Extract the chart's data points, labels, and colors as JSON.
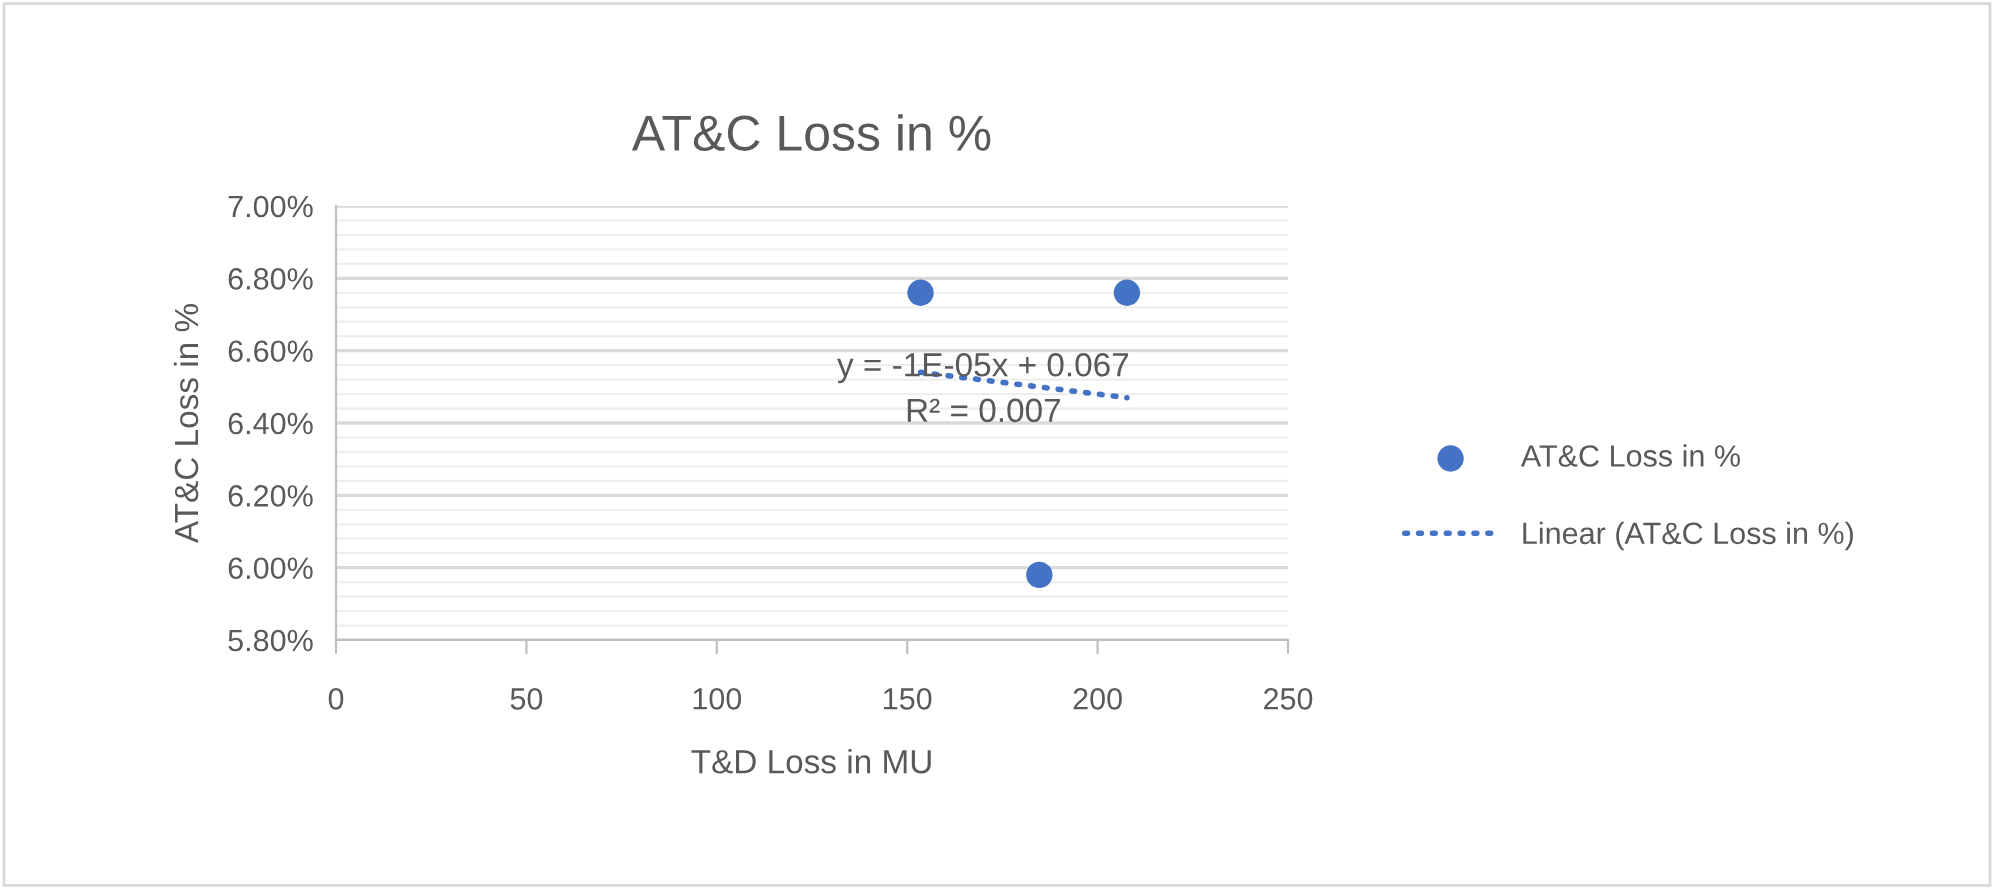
{
  "chart_data": {
    "type": "scatter",
    "title": "AT&C Loss in %",
    "xlabel": "T&D Loss in MU",
    "ylabel": "AT&C Loss in %",
    "series": [
      {
        "name": "AT&C Loss in %",
        "color": "#4472c4",
        "x": [
          153.5,
          207.7,
          184.7
        ],
        "values": [
          6.76,
          6.76,
          5.98
        ],
        "marker": "circle"
      },
      {
        "name": "Linear (AT&C Loss in %)",
        "type": "line",
        "color": "#4472c4",
        "x": [
          153.5,
          207.7
        ],
        "values": [
          6.54,
          6.47
        ],
        "line_style": "dotted",
        "marker": "none"
      }
    ],
    "annotations": [
      {
        "text": "y = -1E-05x + 0.067\nR² = 0.007",
        "x": 170,
        "y": 6.49
      }
    ],
    "xlim": [
      0,
      250
    ],
    "xticks": [
      0,
      50,
      100,
      150,
      200,
      250
    ],
    "ylim": [
      5.8,
      7.0
    ],
    "yticks": [
      {
        "value": 5.8,
        "label": "5.80%"
      },
      {
        "value": 6.0,
        "label": "6.00%"
      },
      {
        "value": 6.2,
        "label": "6.20%"
      },
      {
        "value": 6.4,
        "label": "6.40%"
      },
      {
        "value": 6.6,
        "label": "6.60%"
      },
      {
        "value": 6.8,
        "label": "6.80%"
      },
      {
        "value": 7.0,
        "label": "7.00%"
      }
    ],
    "grid": "y",
    "legend": "right"
  }
}
